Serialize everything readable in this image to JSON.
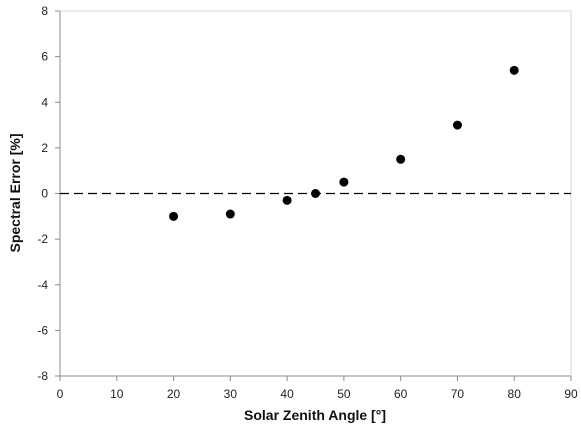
{
  "chart_data": {
    "type": "scatter",
    "title": "",
    "xlabel": "Solar Zenith Angle [°]",
    "ylabel": "Spectral Error [%]",
    "xlim": [
      0,
      90
    ],
    "ylim": [
      -8,
      8
    ],
    "x_ticks": [
      0,
      10,
      20,
      30,
      40,
      50,
      60,
      70,
      80,
      90
    ],
    "y_ticks": [
      -8,
      -6,
      -4,
      -2,
      0,
      2,
      4,
      6,
      8
    ],
    "x_tick_labels": [
      "0",
      "10",
      "20",
      "30",
      "40",
      "50",
      "60",
      "70",
      "80",
      "90"
    ],
    "y_tick_labels": [
      "-8",
      "-6",
      "-4",
      "-2",
      "0",
      "2",
      "4",
      "6",
      "8"
    ],
    "grid": false,
    "legend": "none",
    "reference_line": {
      "y": 0,
      "style": "dashed"
    },
    "marker_color": "#000000",
    "series": [
      {
        "x": [
          20,
          30,
          40,
          45,
          50,
          60,
          70,
          80
        ],
        "y": [
          -1.0,
          -0.9,
          -0.3,
          0.0,
          0.5,
          1.5,
          3.0,
          5.4
        ]
      }
    ]
  }
}
